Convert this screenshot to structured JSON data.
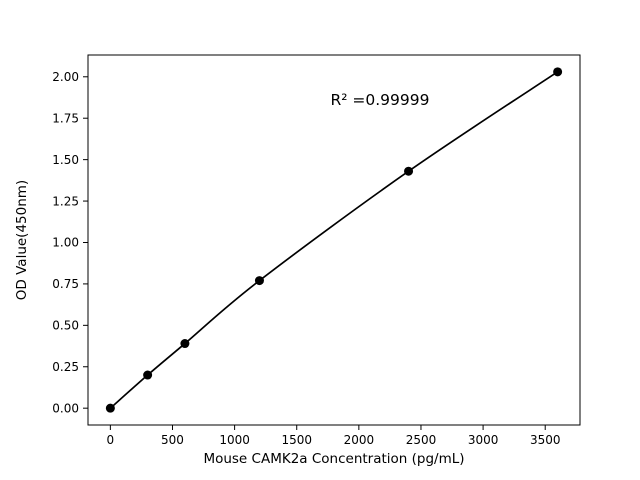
{
  "chart_data": {
    "type": "line",
    "title": "",
    "xlabel": "Mouse CAMK2a Concentration (pg/mL)",
    "ylabel": "OD Value(450nm)",
    "annotation": "R² =0.99999",
    "x": [
      0,
      300,
      600,
      1200,
      2400,
      3600
    ],
    "y": [
      0.0,
      0.2,
      0.39,
      0.77,
      1.43,
      2.03
    ],
    "xlim": [
      -180,
      3780
    ],
    "ylim": [
      -0.1015,
      2.1315
    ],
    "xticks": [
      0,
      500,
      1000,
      1500,
      2000,
      2500,
      3000,
      3500
    ],
    "yticks": [
      0.0,
      0.25,
      0.5,
      0.75,
      1.0,
      1.25,
      1.5,
      1.75,
      2.0
    ],
    "line_color": "#000000",
    "marker_color": "#000000",
    "axis_color": "#000000",
    "background": "#ffffff",
    "grid": false,
    "legend": "none"
  }
}
